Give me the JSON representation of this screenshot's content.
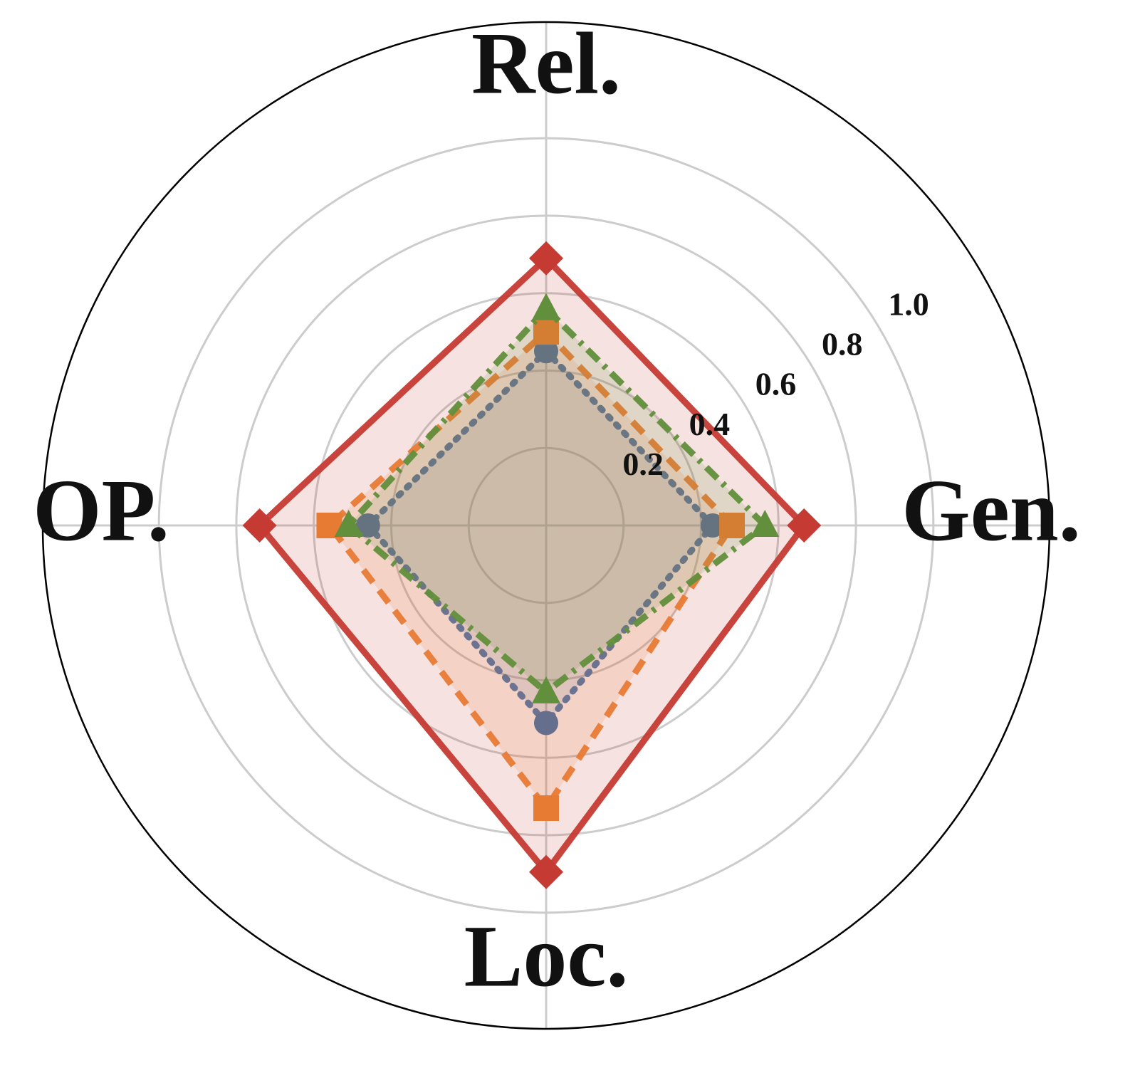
{
  "chart_data": {
    "type": "radar",
    "categories": [
      "Gen.",
      "Rel.",
      "OP.",
      "Loc."
    ],
    "ylim": [
      0,
      1.3
    ],
    "yticks": [
      0.2,
      0.4,
      0.6,
      0.8,
      1.0
    ],
    "grid": true,
    "series": [
      {
        "color": "#3a75b0",
        "marker": "circle",
        "linestyle": "dotted",
        "values": [
          0.43,
          0.45,
          0.46,
          0.51
        ]
      },
      {
        "color": "#ef8636",
        "marker": "square",
        "linestyle": "dashed",
        "values": [
          0.48,
          0.5,
          0.56,
          0.73
        ]
      },
      {
        "color": "#519e3e",
        "marker": "triangle",
        "linestyle": "dashdot",
        "values": [
          0.565,
          0.56,
          0.51,
          0.43
        ]
      },
      {
        "color": "#c53a32",
        "marker": "diamond",
        "linestyle": "solid",
        "values": [
          0.666,
          0.69,
          0.74,
          0.895
        ]
      }
    ]
  }
}
